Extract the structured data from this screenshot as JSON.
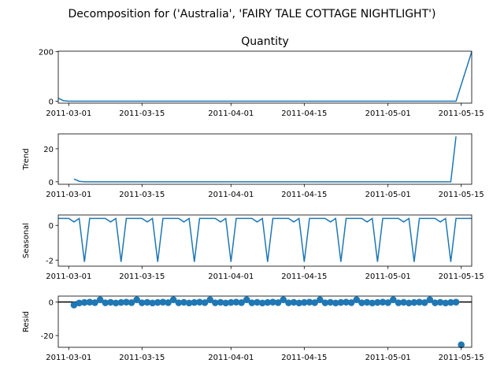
{
  "figure": {
    "suptitle": "Decomposition for ('Australia', 'FAIRY TALE COTTAGE NIGHTLIGHT')",
    "colors": {
      "line": "#1f77b4",
      "marker": "#1f77b4",
      "zero_line": "#000000",
      "axes": "#000000",
      "background": "#ffffff"
    }
  },
  "chart_data": [
    {
      "id": "observed",
      "type": "line",
      "title": "Quantity",
      "ylabel": "",
      "x_start": "2011-03-01",
      "x_end": "2011-05-15",
      "xlim": [
        "2011-02-27",
        "2011-05-17"
      ],
      "ylim": [
        -8,
        202
      ],
      "yticks": [
        0,
        200
      ],
      "xtick_labels": [
        "2011-03-01",
        "2011-03-15",
        "2011-04-01",
        "2011-04-15",
        "2011-05-01",
        "2011-05-15"
      ],
      "series": [
        {
          "points": [
            [
              "2011-02-27",
              12
            ],
            [
              "2011-02-28",
              2
            ],
            [
              "2011-03-01",
              0
            ],
            [
              "2011-05-14",
              0
            ],
            [
              "2011-05-17",
              200
            ]
          ]
        }
      ]
    },
    {
      "id": "trend",
      "type": "line",
      "title": "",
      "ylabel": "Trend",
      "xlim": [
        "2011-02-27",
        "2011-05-17"
      ],
      "ylim": [
        -1.5,
        29
      ],
      "yticks": [
        0,
        20
      ],
      "xtick_labels": [
        "2011-03-01",
        "2011-03-15",
        "2011-04-01",
        "2011-04-15",
        "2011-05-01",
        "2011-05-15"
      ],
      "series": [
        {
          "points": [
            [
              "2011-03-02",
              1.7
            ],
            [
              "2011-03-03",
              0.3
            ],
            [
              "2011-03-04",
              0
            ],
            [
              "2011-05-13",
              0
            ],
            [
              "2011-05-14",
              27.5
            ]
          ]
        }
      ]
    },
    {
      "id": "seasonal",
      "type": "line",
      "title": "",
      "ylabel": "Seasonal",
      "xlim": [
        "2011-02-27",
        "2011-05-17"
      ],
      "ylim": [
        -2.35,
        0.6
      ],
      "yticks": [
        0,
        -2
      ],
      "xtick_labels": [
        "2011-03-01",
        "2011-03-15",
        "2011-04-01",
        "2011-04-15",
        "2011-05-01",
        "2011-05-15"
      ],
      "weekly_pattern": [
        0.4,
        0.4,
        0.4,
        0.2,
        0.4,
        -2.1,
        0.4
      ],
      "series_start": "2011-02-27",
      "series_end": "2011-05-17"
    },
    {
      "id": "resid",
      "type": "scatter",
      "title": "",
      "ylabel": "Resid",
      "xlim": [
        "2011-02-27",
        "2011-05-17"
      ],
      "ylim": [
        -27,
        3.5
      ],
      "yticks": [
        0,
        -20
      ],
      "zero_line": true,
      "xtick_labels": [
        "2011-03-01",
        "2011-03-15",
        "2011-04-01",
        "2011-04-15",
        "2011-05-01",
        "2011-05-15"
      ],
      "weekly_pattern": [
        -0.6,
        -0.3,
        -0.1,
        -0.4,
        1.3,
        -0.5,
        -0.2
      ],
      "first_point": [
        "2011-03-02",
        -1.8
      ],
      "outlier": [
        "2011-05-15",
        -25.5
      ],
      "pattern_start": "2011-03-03",
      "pattern_end": "2011-05-14"
    }
  ]
}
